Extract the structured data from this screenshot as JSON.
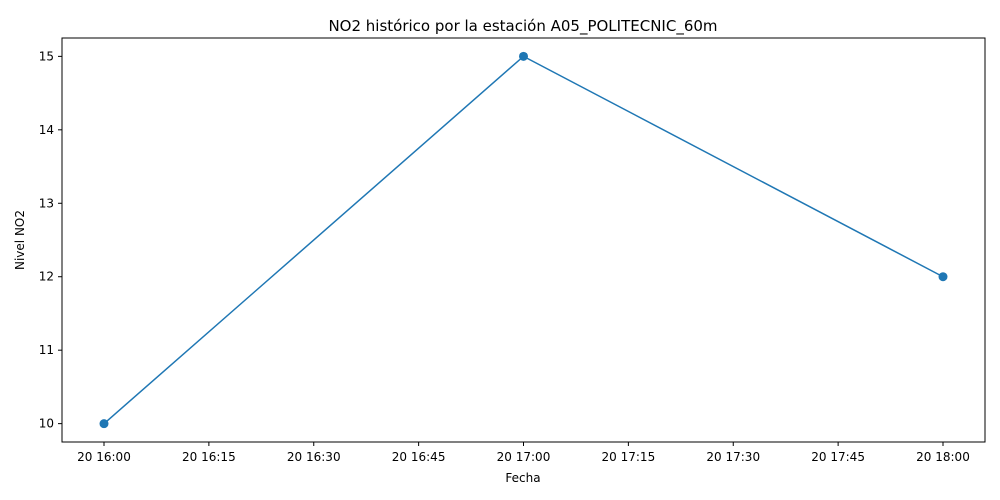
{
  "chart_data": {
    "type": "line",
    "title": "NO2 histórico por la estación A05_POLITECNIC_60m",
    "xlabel": "Fecha",
    "ylabel": "Nivel NO2",
    "x_ticks": [
      "20 16:00",
      "20 16:15",
      "20 16:30",
      "20 16:45",
      "20 17:00",
      "20 17:15",
      "20 17:30",
      "20 17:45",
      "20 18:00"
    ],
    "y_ticks": [
      10,
      11,
      12,
      13,
      14,
      15
    ],
    "ylim": [
      9.75,
      15.25
    ],
    "grid": false,
    "legend": "none",
    "series": [
      {
        "color": "#1f77b4",
        "marker": "circle",
        "x": [
          "20 16:00",
          "20 17:00",
          "20 18:00"
        ],
        "y": [
          10,
          15,
          12
        ]
      }
    ]
  }
}
